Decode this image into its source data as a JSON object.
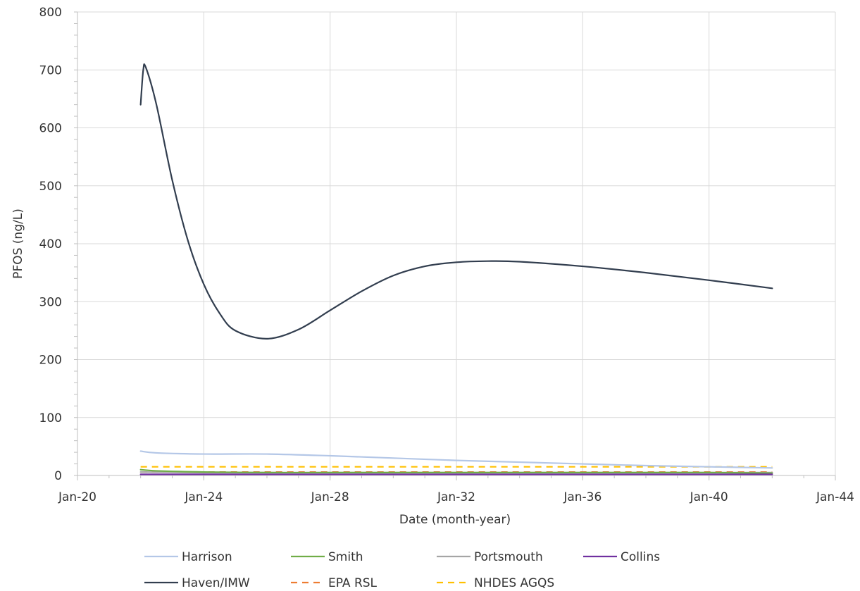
{
  "chart_data": {
    "type": "line",
    "title": "",
    "xlabel": "Date (month-year)",
    "ylabel": "PFOS (ng/L)",
    "xlim": [
      "Jan-20",
      "Jan-44"
    ],
    "x_ticks": [
      "Jan-20",
      "Jan-24",
      "Jan-28",
      "Jan-32",
      "Jan-36",
      "Jan-40",
      "Jan-44"
    ],
    "ylim": [
      0,
      800
    ],
    "y_ticks": [
      0,
      100,
      200,
      300,
      400,
      500,
      600,
      700,
      800
    ],
    "grid": true,
    "legend_position": "bottom",
    "series": [
      {
        "name": "Harrison",
        "color": "#b4c7e7",
        "dash": "solid",
        "points": [
          [
            "Jan-22",
            42
          ],
          [
            "Jul-22",
            39
          ],
          [
            "Jan-24",
            37
          ],
          [
            "Jan-26",
            37
          ],
          [
            "Jan-28",
            34
          ],
          [
            "Jan-30",
            30
          ],
          [
            "Jan-32",
            26
          ],
          [
            "Jan-34",
            23
          ],
          [
            "Jan-36",
            20
          ],
          [
            "Jan-38",
            17
          ],
          [
            "Jan-40",
            15
          ],
          [
            "Jan-42",
            13
          ]
        ]
      },
      {
        "name": "Smith",
        "color": "#70ad47",
        "dash": "solid",
        "points": [
          [
            "Jan-22",
            10
          ],
          [
            "Jul-22",
            8
          ],
          [
            "Jan-24",
            6
          ],
          [
            "Jan-26",
            5
          ],
          [
            "Jan-28",
            5
          ],
          [
            "Jan-30",
            5
          ],
          [
            "Jan-32",
            5
          ],
          [
            "Jan-34",
            5
          ],
          [
            "Jan-36",
            5
          ],
          [
            "Jan-38",
            5
          ],
          [
            "Jan-40",
            5
          ],
          [
            "Jan-42",
            4
          ]
        ]
      },
      {
        "name": "Portsmouth",
        "color": "#a5a5a5",
        "dash": "solid",
        "points": [
          [
            "Jan-22",
            6
          ],
          [
            "Jan-24",
            5
          ],
          [
            "Jan-28",
            5
          ],
          [
            "Jan-32",
            5
          ],
          [
            "Jan-36",
            5
          ],
          [
            "Jan-40",
            5
          ],
          [
            "Jan-42",
            5
          ]
        ]
      },
      {
        "name": "Collins",
        "color": "#7030a0",
        "dash": "solid",
        "points": [
          [
            "Jan-22",
            2
          ],
          [
            "Jan-24",
            2
          ],
          [
            "Jan-28",
            2
          ],
          [
            "Jan-32",
            2
          ],
          [
            "Jan-36",
            2
          ],
          [
            "Jan-40",
            2
          ],
          [
            "Jan-42",
            2
          ]
        ]
      },
      {
        "name": "Haven/IMW",
        "color": "#323e4f",
        "dash": "solid",
        "points": [
          [
            "Jan-22",
            640
          ],
          [
            "Feb-22",
            700
          ],
          [
            "Mar-22",
            704
          ],
          [
            "Jul-22",
            640
          ],
          [
            "Jan-23",
            510
          ],
          [
            "Jul-23",
            405
          ],
          [
            "Jan-24",
            330
          ],
          [
            "Jul-24",
            280
          ],
          [
            "Jan-25",
            250
          ],
          [
            "Jan-26",
            236
          ],
          [
            "Jan-27",
            252
          ],
          [
            "Jan-28",
            285
          ],
          [
            "Jan-29",
            318
          ],
          [
            "Jan-30",
            345
          ],
          [
            "Jan-31",
            361
          ],
          [
            "Jan-32",
            368
          ],
          [
            "Jan-33",
            370
          ],
          [
            "Jan-34",
            369
          ],
          [
            "Jan-36",
            361
          ],
          [
            "Jan-38",
            350
          ],
          [
            "Jan-40",
            337
          ],
          [
            "Jan-42",
            323
          ]
        ]
      },
      {
        "name": "EPA RSL",
        "color": "#ed7d31",
        "dash": "dashed",
        "points": [
          [
            "Jan-22",
            6
          ],
          [
            "Jan-42",
            6
          ]
        ]
      },
      {
        "name": "NHDES AGQS",
        "color": "#ffc000",
        "dash": "dashed",
        "points": [
          [
            "Jan-22",
            15
          ],
          [
            "Jan-42",
            15
          ]
        ]
      }
    ]
  }
}
